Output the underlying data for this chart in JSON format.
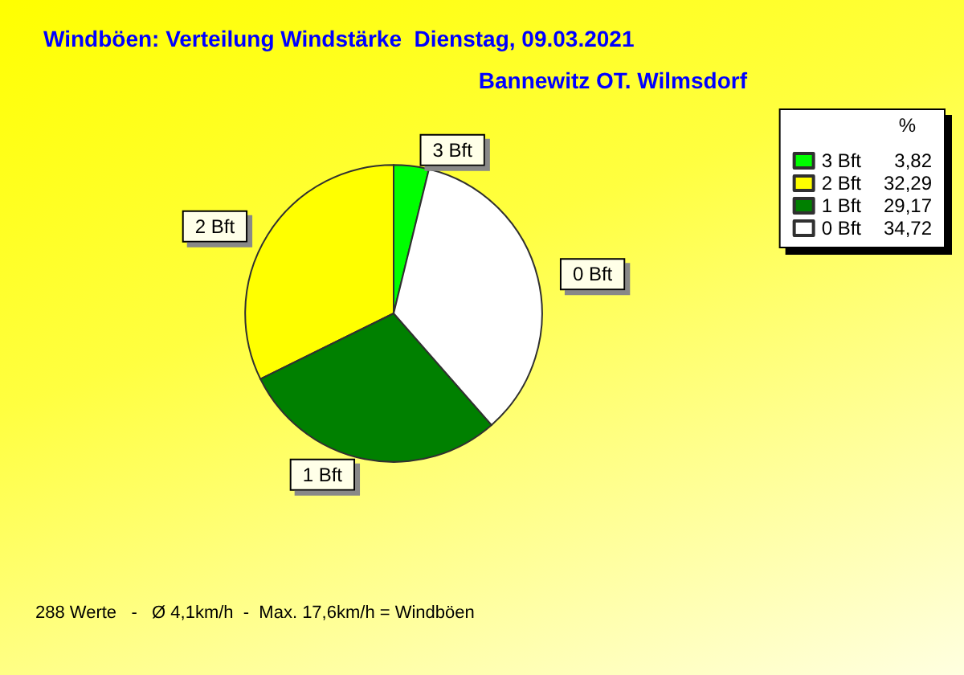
{
  "chart_data": {
    "type": "pie",
    "title": "Windböen: Verteilung Windstärke  Dienstag, 09.03.2021",
    "subtitle": "Bannewitz OT. Wilmsdorf",
    "categories": [
      "3 Bft",
      "2 Bft",
      "1 Bft",
      "0 Bft"
    ],
    "values": [
      3.82,
      32.29,
      29.17,
      34.72
    ],
    "value_labels": [
      "3,82",
      "32,29",
      "29,17",
      "34,72"
    ],
    "colors": [
      "#00ff00",
      "#ffff00",
      "#008000",
      "#ffffff"
    ],
    "legend": "top right",
    "legend_title": "%",
    "annotations": [
      "288 Werte   -   Ø 4,1km/h  -  Max. 17,6km/h = Windböen"
    ]
  }
}
